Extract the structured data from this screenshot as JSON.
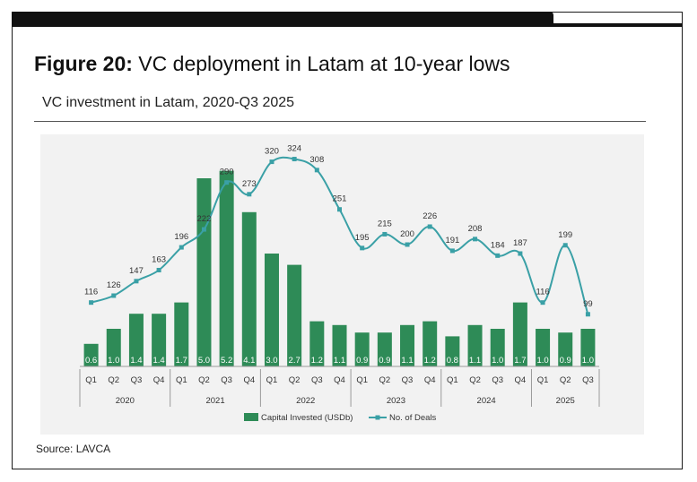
{
  "header": {
    "figure_label": "Figure 20:",
    "figure_text": " VC deployment in Latam at 10-year lows",
    "subtitle": "VC investment in Latam, 2020-Q3 2025"
  },
  "footer": {
    "source": "Source: LAVCA"
  },
  "colors": {
    "bar": "#2e8b57",
    "line": "#3aa0a6",
    "bg": "#f2f2f2"
  },
  "chart_data": {
    "type": "bar",
    "categories": [
      "Q1",
      "Q2",
      "Q3",
      "Q4",
      "Q1",
      "Q2",
      "Q3",
      "Q4",
      "Q1",
      "Q2",
      "Q3",
      "Q4",
      "Q1",
      "Q2",
      "Q3",
      "Q4",
      "Q1",
      "Q2",
      "Q3",
      "Q4",
      "Q1",
      "Q2",
      "Q3"
    ],
    "years": [
      {
        "label": "2020",
        "quarters": 4
      },
      {
        "label": "2021",
        "quarters": 4
      },
      {
        "label": "2022",
        "quarters": 4
      },
      {
        "label": "2023",
        "quarters": 4
      },
      {
        "label": "2024",
        "quarters": 4
      },
      {
        "label": "2025",
        "quarters": 3
      }
    ],
    "series": [
      {
        "name": "Capital Invested (USDb)",
        "type": "bar",
        "values": [
          0.6,
          1.0,
          1.4,
          1.4,
          1.7,
          5.0,
          5.2,
          4.1,
          3.0,
          2.7,
          1.2,
          1.1,
          0.9,
          0.9,
          1.1,
          1.2,
          0.8,
          1.1,
          1.0,
          1.7,
          1.0,
          0.9,
          1.0
        ],
        "labels": [
          "0.6",
          "1.0",
          "1.4",
          "1.4",
          "1.7",
          "5.0",
          "5.2",
          "4.1",
          "3.0",
          "2.7",
          "1.2",
          "1.1",
          "0.9",
          "0.9",
          "1.1",
          "1.2",
          "0.8",
          "1.1",
          "1.0",
          "1.7",
          "1.0",
          "0.9",
          "1.0"
        ]
      },
      {
        "name": "No. of Deals",
        "type": "line",
        "values": [
          116,
          126,
          147,
          163,
          196,
          222,
          290,
          273,
          320,
          324,
          308,
          251,
          195,
          215,
          200,
          226,
          191,
          208,
          184,
          187,
          116,
          199,
          99
        ]
      }
    ],
    "title": "VC investment in Latam, 2020-Q3 2025",
    "legend_position": "bottom",
    "grid": false
  }
}
